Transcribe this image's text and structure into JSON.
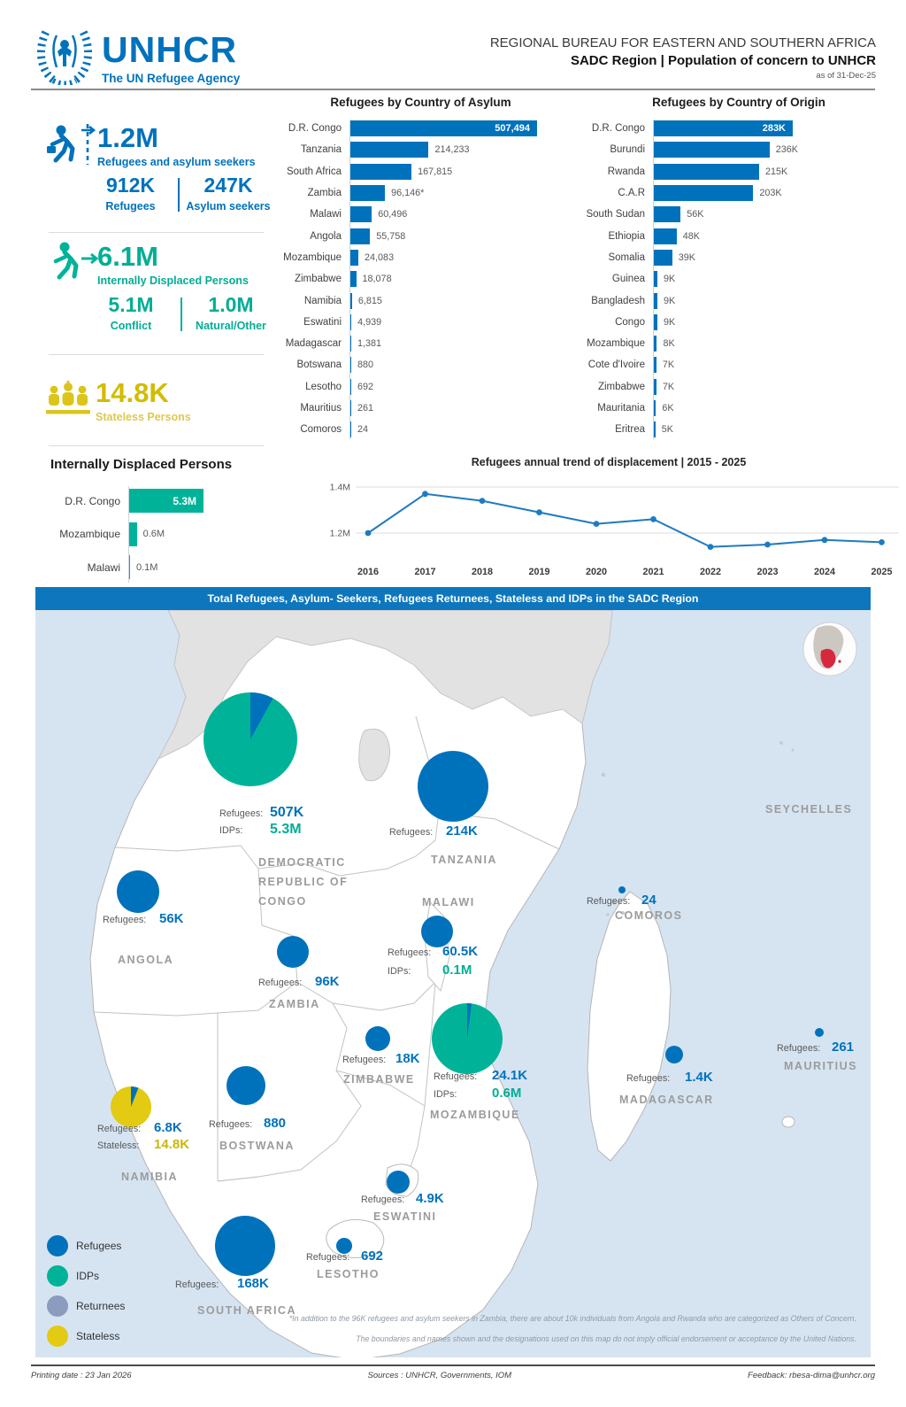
{
  "header": {
    "brand": "UNHCR",
    "tagline": "The UN Refugee Agency",
    "title_line1": "REGIONAL BUREAU FOR EASTERN AND SOUTHERN AFRICA",
    "title_line2": "SADC Region | Population of concern to UNHCR",
    "as_of": "as of 31-Dec-25"
  },
  "colors": {
    "blue": "#0072BC",
    "teal": "#00AE94",
    "yellow": "#CDB70B",
    "legend_yellow": "#E3CA13",
    "returnees_gray": "#8C9CBE",
    "banner_blue": "#0E76BC",
    "line_blue": "#1F7BBF",
    "ocean": "#D6E4F2",
    "land_other": "#E2E2E2",
    "red_inset": "#D6293E"
  },
  "summary": {
    "refugees_asylum": {
      "value": "1.2M",
      "label": "Refugees and asylum seekers",
      "breakdown": [
        {
          "value": "912K",
          "label": "Refugees"
        },
        {
          "value": "247K",
          "label": "Asylum seekers"
        }
      ]
    },
    "idps": {
      "value": "6.1M",
      "label": "Internally Displaced Persons",
      "breakdown": [
        {
          "value": "5.1M",
          "label": "Conflict"
        },
        {
          "value": "1.0M",
          "label": "Natural/Other"
        }
      ]
    },
    "stateless": {
      "value": "14.8K",
      "label": "Stateless Persons"
    }
  },
  "chart_data": [
    {
      "type": "bar",
      "orientation": "horizontal",
      "title": "Refugees by Country of Asylum",
      "categories": [
        "D.R. Congo",
        "Tanzania",
        "South Africa",
        "Zambia",
        "Malawi",
        "Angola",
        "Mozambique",
        "Zimbabwe",
        "Namibia",
        "Eswatini",
        "Madagascar",
        "Botswana",
        "Lesotho",
        "Mauritius",
        "Comoros"
      ],
      "values": [
        507494,
        214233,
        167815,
        96146,
        60496,
        55758,
        24083,
        18078,
        6815,
        4939,
        1381,
        880,
        692,
        261,
        24
      ],
      "value_labels": [
        "507,494",
        "214,233",
        "167,815",
        "96,146*",
        "60,496",
        "55,758",
        "24,083",
        "18,078",
        "6,815",
        "4,939",
        "1,381",
        "880",
        "692",
        "261",
        "24"
      ],
      "bar_color": "#0072BC"
    },
    {
      "type": "bar",
      "orientation": "horizontal",
      "title": "Refugees by Country of Origin",
      "categories": [
        "D.R. Congo",
        "Burundi",
        "Rwanda",
        "C.A.R",
        "South Sudan",
        "Ethiopia",
        "Somalia",
        "Guinea",
        "Bangladesh",
        "Congo",
        "Mozambique",
        "Cote d'Ivoire",
        "Zimbabwe",
        "Mauritania",
        "Eritrea"
      ],
      "values": [
        283,
        236,
        215,
        203,
        56,
        48,
        39,
        9,
        9,
        9,
        8,
        7,
        7,
        6,
        5
      ],
      "value_labels": [
        "283K",
        "236K",
        "215K",
        "203K",
        "56K",
        "48K",
        "39K",
        "9K",
        "9K",
        "9K",
        "8K",
        "7K",
        "7K",
        "6K",
        "5K"
      ],
      "bar_color": "#0072BC"
    },
    {
      "type": "bar",
      "orientation": "horizontal",
      "title": "Internally Displaced Persons",
      "categories": [
        "D.R. Congo",
        "Mozambique",
        "Malawi"
      ],
      "values": [
        5.3,
        0.6,
        0.1
      ],
      "value_labels": [
        "5.3M",
        "0.6M",
        "0.1M"
      ],
      "bar_color": "#00B398"
    },
    {
      "type": "line",
      "title": "Refugees annual trend of displacement | 2015 - 2025",
      "x": [
        "2016",
        "2017",
        "2018",
        "2019",
        "2020",
        "2021",
        "2022",
        "2023",
        "2024",
        "2025"
      ],
      "y": [
        1.2,
        1.37,
        1.34,
        1.29,
        1.24,
        1.26,
        1.14,
        1.15,
        1.17,
        1.16
      ],
      "unit": "M",
      "yticks": [
        "1.4M",
        "1.2M"
      ],
      "ytick_values": [
        1.4,
        1.2
      ],
      "ylim": [
        1.05,
        1.45
      ],
      "grid": true,
      "line_color": "#1F7BBF"
    }
  ],
  "map": {
    "banner": "Total Refugees, Asylum- Seekers, Refugees Returnees, Stateless and IDPs in the SADC Region",
    "legend": [
      {
        "label": "Refugees",
        "color": "#0072BC"
      },
      {
        "label": "IDPs",
        "color": "#00B398"
      },
      {
        "label": "Returnees",
        "color": "#8C9CBE"
      },
      {
        "label": "Stateless",
        "color": "#E3CA13"
      }
    ],
    "other_labels": [
      "SEYCHELLES"
    ],
    "markers": [
      {
        "id": "drc",
        "country_lines": [
          "DEMOCRATIC",
          "REPUBLIC OF",
          "CONGO"
        ],
        "marker": "pie",
        "base_color": "teal",
        "pie_slices": [
          {
            "color": "blue",
            "fraction": 0.08
          }
        ],
        "stats": [
          {
            "label": "Refugees:",
            "value": "507K",
            "color": "blue"
          },
          {
            "label": "IDPs:",
            "value": "5.3M",
            "color": "teal"
          }
        ]
      },
      {
        "id": "tanzania",
        "country_lines": [
          "TANZANIA"
        ],
        "marker": "circle",
        "base_color": "blue",
        "stats": [
          {
            "label": "Refugees:",
            "value": "214K",
            "color": "blue"
          }
        ]
      },
      {
        "id": "angola",
        "country_lines": [
          "ANGOLA"
        ],
        "marker": "circle",
        "base_color": "blue",
        "stats": [
          {
            "label": "Refugees:",
            "value": "56K",
            "color": "blue"
          }
        ]
      },
      {
        "id": "zambia",
        "country_lines": [
          "ZAMBIA"
        ],
        "marker": "circle",
        "base_color": "blue",
        "stats": [
          {
            "label": "Refugees:",
            "value": "96K",
            "color": "blue"
          }
        ]
      },
      {
        "id": "malawi",
        "country_lines": [
          "MALAWI"
        ],
        "marker": "circle",
        "base_color": "blue",
        "stats": [
          {
            "label": "Refugees:",
            "value": "60.5K",
            "color": "blue"
          },
          {
            "label": "IDPs:",
            "value": "0.1M",
            "color": "teal"
          }
        ]
      },
      {
        "id": "comoros",
        "country_lines": [
          "COMOROS"
        ],
        "marker": "circle",
        "base_color": "blue",
        "stats": [
          {
            "label": "Refugees:",
            "value": "24",
            "color": "blue"
          }
        ]
      },
      {
        "id": "zimbabwe",
        "country_lines": [
          "ZIMBABWE"
        ],
        "marker": "circle",
        "base_color": "blue",
        "stats": [
          {
            "label": "Refugees:",
            "value": "18K",
            "color": "blue"
          }
        ]
      },
      {
        "id": "mozambique",
        "country_lines": [
          "MOZAMBIQUE"
        ],
        "marker": "pie",
        "base_color": "teal",
        "pie_slices": [
          {
            "color": "blue",
            "fraction": 0.02
          }
        ],
        "stats": [
          {
            "label": "Refugees:",
            "value": "24.1K",
            "color": "blue"
          },
          {
            "label": "IDPs:",
            "value": "0.6M",
            "color": "teal"
          }
        ]
      },
      {
        "id": "madagascar",
        "country_lines": [
          "MADAGASCAR"
        ],
        "marker": "circle",
        "base_color": "blue",
        "stats": [
          {
            "label": "Refugees:",
            "value": "1.4K",
            "color": "blue"
          }
        ]
      },
      {
        "id": "mauritius",
        "country_lines": [
          "MAURITIUS"
        ],
        "marker": "circle",
        "base_color": "blue",
        "stats": [
          {
            "label": "Refugees:",
            "value": "261",
            "color": "blue"
          }
        ]
      },
      {
        "id": "namibia",
        "country_lines": [
          "NAMIBIA"
        ],
        "marker": "pie",
        "base_color": "legend_yellow",
        "pie_slices": [
          {
            "color": "blue",
            "fraction": 0.06
          }
        ],
        "stats": [
          {
            "label": "Refugees:",
            "value": "6.8K",
            "color": "blue"
          },
          {
            "label": "Stateless:",
            "value": "14.8K",
            "color": "yellow"
          }
        ]
      },
      {
        "id": "botswana",
        "country_lines": [
          "BOSTWANA"
        ],
        "marker": "circle",
        "base_color": "blue",
        "stats": [
          {
            "label": "Refugees:",
            "value": "880",
            "color": "blue"
          }
        ]
      },
      {
        "id": "south_africa",
        "country_lines": [
          "SOUTH AFRICA"
        ],
        "marker": "circle",
        "base_color": "blue",
        "stats": [
          {
            "label": "Refugees:",
            "value": "168K",
            "color": "blue"
          }
        ]
      },
      {
        "id": "eswatini",
        "country_lines": [
          "ESWATINI"
        ],
        "marker": "circle",
        "base_color": "blue",
        "stats": [
          {
            "label": "Refugees:",
            "value": "4.9K",
            "color": "blue"
          }
        ]
      },
      {
        "id": "lesotho",
        "country_lines": [
          "LESOTHO"
        ],
        "marker": "circle",
        "base_color": "blue",
        "stats": [
          {
            "label": "Refugees:",
            "value": "692",
            "color": "blue"
          }
        ]
      }
    ],
    "footnote1": "*In addition to the 96K refugees and asylum seekers in Zambia, there are about 10k individuals from Angola and Rwanda who are categorized as Others of Concern.",
    "footnote2": "The boundaries and names shown and the designations used on this map do not imply official endorsement or acceptance by the United Nations."
  },
  "footer": {
    "printing": "Printing date : 23 Jan 2026",
    "sources": "Sources : UNHCR, Governments, IOM",
    "feedback": "Feedback: rbesa-dima@unhcr.org"
  }
}
